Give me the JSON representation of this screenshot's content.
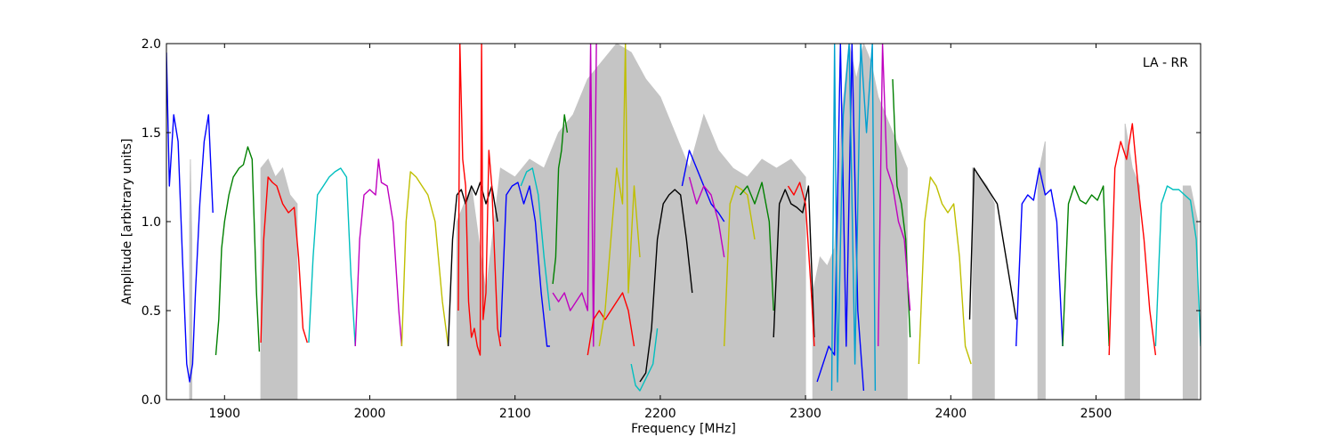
{
  "chart_data": {
    "type": "line",
    "title": "",
    "annotation": "LA - RR",
    "xlabel": "Frequency [MHz]",
    "ylabel": "Amplitude [arbitrary units]",
    "xlim": [
      1860,
      2572
    ],
    "ylim": [
      0.0,
      2.0
    ],
    "xticks": [
      1900,
      2000,
      2100,
      2200,
      2300,
      2400,
      2500
    ],
    "yticks": [
      0.0,
      0.5,
      1.0,
      1.5,
      2.0
    ],
    "xtick_labels": [
      "1900",
      "2000",
      "2100",
      "2200",
      "2300",
      "2400",
      "2500"
    ],
    "ytick_labels": [
      "0.0",
      "0.5",
      "1.0",
      "1.5",
      "2.0"
    ],
    "grid": false,
    "background_series": {
      "color": "#bfbfbf",
      "bands": [
        {
          "x": [
            1876,
            1876.5,
            1877,
            1877.5
          ],
          "y": [
            1.0,
            1.35,
            1.1,
            0.9
          ]
        },
        {
          "x": [
            1925,
            1930,
            1935,
            1940,
            1945,
            1950
          ],
          "y": [
            1.3,
            1.35,
            1.25,
            1.3,
            1.15,
            1.1
          ]
        },
        {
          "x": [
            2060,
            2070,
            2080,
            2090,
            2100,
            2110,
            2120,
            2130,
            2140,
            2150,
            2160,
            2170,
            2180,
            2190,
            2200,
            2210,
            2220,
            2230,
            2240,
            2250,
            2260,
            2270,
            2280,
            2290,
            2300
          ],
          "y": [
            1.0,
            1.2,
            0.6,
            1.3,
            1.25,
            1.35,
            1.3,
            1.5,
            1.6,
            1.8,
            1.9,
            2.0,
            1.95,
            1.8,
            1.7,
            1.5,
            1.3,
            1.6,
            1.4,
            1.3,
            1.25,
            1.35,
            1.3,
            1.35,
            1.25
          ]
        },
        {
          "x": [
            2305,
            2310,
            2315,
            2320,
            2325,
            2330,
            2335,
            2340,
            2345,
            2350,
            2355,
            2360,
            2365,
            2370
          ],
          "y": [
            0.6,
            0.8,
            0.75,
            0.85,
            1.6,
            2.0,
            1.8,
            2.0,
            1.9,
            1.7,
            1.6,
            1.5,
            1.4,
            1.3
          ]
        },
        {
          "x": [
            2415,
            2420,
            2425,
            2430
          ],
          "y": [
            1.3,
            1.25,
            1.2,
            1.1
          ]
        },
        {
          "x": [
            2460,
            2465
          ],
          "y": [
            1.25,
            1.45
          ]
        },
        {
          "x": [
            2520,
            2525,
            2530
          ],
          "y": [
            1.55,
            1.3,
            1.2
          ]
        },
        {
          "x": [
            2560,
            2565,
            2570
          ],
          "y": [
            1.2,
            1.2,
            1.0
          ]
        }
      ]
    },
    "series": [
      {
        "color": "#0000ff",
        "x": [
          1860,
          1862,
          1865,
          1868,
          1871,
          1874,
          1876,
          1878,
          1880,
          1883,
          1886,
          1889,
          1892
        ],
        "y": [
          1.95,
          1.2,
          1.6,
          1.45,
          0.8,
          0.2,
          0.1,
          0.2,
          0.6,
          1.1,
          1.45,
          1.6,
          1.05
        ]
      },
      {
        "color": "#008000",
        "x": [
          1894,
          1896,
          1898,
          1900,
          1903,
          1906,
          1910,
          1913,
          1916,
          1919,
          1922,
          1924
        ],
        "y": [
          0.25,
          0.45,
          0.85,
          1.0,
          1.15,
          1.25,
          1.3,
          1.32,
          1.42,
          1.35,
          0.6,
          0.27
        ]
      },
      {
        "color": "#ff0000",
        "x": [
          1925,
          1927,
          1930,
          1933,
          1936,
          1940,
          1944,
          1948,
          1951,
          1954,
          1957
        ],
        "y": [
          0.32,
          0.9,
          1.25,
          1.22,
          1.2,
          1.1,
          1.05,
          1.08,
          0.8,
          0.4,
          0.32
        ]
      },
      {
        "color": "#00bfbf",
        "x": [
          1958,
          1961,
          1964,
          1968,
          1972,
          1976,
          1980,
          1984,
          1987,
          1990
        ],
        "y": [
          0.32,
          0.8,
          1.15,
          1.2,
          1.25,
          1.28,
          1.3,
          1.25,
          0.7,
          0.3
        ]
      },
      {
        "color": "#bf00bf",
        "x": [
          1990,
          1993,
          1996,
          2000,
          2004,
          2006,
          2008,
          2012,
          2016,
          2020,
          2022
        ],
        "y": [
          0.3,
          0.9,
          1.15,
          1.18,
          1.15,
          1.35,
          1.22,
          1.2,
          1.0,
          0.5,
          0.3
        ]
      },
      {
        "color": "#bfbf00",
        "x": [
          2022,
          2025,
          2028,
          2032,
          2036,
          2040,
          2045,
          2050,
          2054
        ],
        "y": [
          0.3,
          1.0,
          1.28,
          1.25,
          1.2,
          1.15,
          1.0,
          0.55,
          0.3
        ]
      },
      {
        "color": "#000000",
        "x": [
          2054,
          2057,
          2060,
          2063,
          2066,
          2070,
          2073,
          2076,
          2080,
          2084,
          2088
        ],
        "y": [
          0.3,
          0.9,
          1.15,
          1.18,
          1.1,
          1.2,
          1.15,
          1.22,
          1.1,
          1.2,
          1.0
        ]
      },
      {
        "color": "#ff0000",
        "x": [
          2061,
          2062,
          2064,
          2066,
          2068,
          2070,
          2072,
          2074,
          2076,
          2077,
          2078,
          2080,
          2082,
          2084,
          2086,
          2088,
          2090
        ],
        "y": [
          0.5,
          2.0,
          1.35,
          1.2,
          0.55,
          0.35,
          0.4,
          0.3,
          0.25,
          2.0,
          0.45,
          0.6,
          1.4,
          1.2,
          0.8,
          0.4,
          0.3
        ]
      },
      {
        "color": "#0000ff",
        "x": [
          2090,
          2094,
          2098,
          2102,
          2106,
          2110,
          2114,
          2118,
          2122,
          2124
        ],
        "y": [
          0.35,
          1.15,
          1.2,
          1.22,
          1.1,
          1.2,
          1.0,
          0.6,
          0.3,
          0.3
        ]
      },
      {
        "color": "#00bfbf",
        "x": [
          2104,
          2108,
          2112,
          2116,
          2120,
          2124
        ],
        "y": [
          1.2,
          1.28,
          1.3,
          1.15,
          0.8,
          0.5
        ]
      },
      {
        "color": "#008000",
        "x": [
          2126,
          2128,
          2130,
          2132,
          2134,
          2136
        ],
        "y": [
          0.65,
          0.8,
          1.3,
          1.4,
          1.6,
          1.5
        ]
      },
      {
        "color": "#bf00bf",
        "x": [
          2126,
          2130,
          2134,
          2138,
          2142,
          2146,
          2150,
          2152,
          2154,
          2156
        ],
        "y": [
          0.6,
          0.55,
          0.6,
          0.5,
          0.55,
          0.6,
          0.5,
          2.0,
          0.3,
          2.0
        ]
      },
      {
        "color": "#ff0000",
        "x": [
          2150,
          2154,
          2158,
          2162,
          2166,
          2170,
          2174,
          2178,
          2182
        ],
        "y": [
          0.25,
          0.45,
          0.5,
          0.45,
          0.5,
          0.55,
          0.6,
          0.5,
          0.3
        ]
      },
      {
        "color": "#bfbf00",
        "x": [
          2158,
          2162,
          2166,
          2170,
          2174,
          2176,
          2178,
          2182,
          2186
        ],
        "y": [
          0.3,
          0.5,
          0.9,
          1.3,
          1.1,
          2.0,
          0.6,
          1.2,
          0.8
        ]
      },
      {
        "color": "#00bfbf",
        "x": [
          2180,
          2183,
          2186,
          2189,
          2192,
          2195,
          2198
        ],
        "y": [
          0.2,
          0.08,
          0.05,
          0.1,
          0.15,
          0.2,
          0.4
        ]
      },
      {
        "color": "#000000",
        "x": [
          2186,
          2190,
          2194,
          2198,
          2202,
          2206,
          2210,
          2214,
          2218,
          2222
        ],
        "y": [
          0.1,
          0.15,
          0.4,
          0.9,
          1.1,
          1.15,
          1.18,
          1.15,
          0.9,
          0.6
        ]
      },
      {
        "color": "#0000ff",
        "x": [
          2215,
          2220,
          2225,
          2230,
          2235,
          2240,
          2244
        ],
        "y": [
          1.2,
          1.4,
          1.3,
          1.2,
          1.1,
          1.05,
          1.0
        ]
      },
      {
        "color": "#bf00bf",
        "x": [
          2220,
          2225,
          2230,
          2235,
          2240,
          2244
        ],
        "y": [
          1.25,
          1.1,
          1.2,
          1.15,
          1.0,
          0.8
        ]
      },
      {
        "color": "#bfbf00",
        "x": [
          2244,
          2248,
          2252,
          2256,
          2260,
          2265
        ],
        "y": [
          0.3,
          1.1,
          1.2,
          1.18,
          1.15,
          0.9
        ]
      },
      {
        "color": "#008000",
        "x": [
          2255,
          2260,
          2265,
          2270,
          2275,
          2278
        ],
        "y": [
          1.15,
          1.2,
          1.1,
          1.22,
          1.0,
          0.5
        ]
      },
      {
        "color": "#000000",
        "x": [
          2278,
          2282,
          2286,
          2290,
          2294,
          2298,
          2302,
          2306
        ],
        "y": [
          0.35,
          1.1,
          1.18,
          1.1,
          1.08,
          1.05,
          1.2,
          0.35
        ]
      },
      {
        "color": "#ff0000",
        "x": [
          2288,
          2292,
          2296,
          2300,
          2304,
          2306
        ],
        "y": [
          1.2,
          1.15,
          1.22,
          1.1,
          0.6,
          0.3
        ]
      },
      {
        "color": "#0000ff",
        "x": [
          2308,
          2312,
          2316,
          2320,
          2324,
          2328,
          2332,
          2336,
          2340
        ],
        "y": [
          0.1,
          0.2,
          0.3,
          0.25,
          2.0,
          0.3,
          2.0,
          0.5,
          0.05
        ]
      },
      {
        "color": "#00a0d0",
        "x": [
          2318,
          2320,
          2322,
          2326,
          2330,
          2334,
          2338,
          2342,
          2346,
          2348
        ],
        "y": [
          0.05,
          2.0,
          0.1,
          1.6,
          2.0,
          0.2,
          2.0,
          1.5,
          2.0,
          0.05
        ]
      },
      {
        "color": "#008000",
        "x": [
          2360,
          2363,
          2366,
          2369,
          2372
        ],
        "y": [
          1.8,
          1.2,
          1.1,
          0.9,
          0.35
        ]
      },
      {
        "color": "#bf00bf",
        "x": [
          2350,
          2353,
          2356,
          2360,
          2364,
          2368,
          2372
        ],
        "y": [
          0.3,
          2.0,
          1.3,
          1.2,
          1.0,
          0.9,
          0.5
        ]
      },
      {
        "color": "#bfbf00",
        "x": [
          2378,
          2382,
          2386,
          2390,
          2394,
          2398,
          2402,
          2406,
          2410,
          2414
        ],
        "y": [
          0.2,
          1.0,
          1.25,
          1.2,
          1.1,
          1.05,
          1.1,
          0.8,
          0.3,
          0.2
        ]
      },
      {
        "color": "#000000",
        "x": [
          2413,
          2416,
          2420,
          2424,
          2428,
          2432,
          2436,
          2440,
          2445
        ],
        "y": [
          0.45,
          1.3,
          1.25,
          1.2,
          1.15,
          1.1,
          0.9,
          0.7,
          0.45
        ]
      },
      {
        "color": "#0000ff",
        "x": [
          2445,
          2449,
          2453,
          2457,
          2461,
          2465,
          2469,
          2473,
          2477
        ],
        "y": [
          0.3,
          1.1,
          1.15,
          1.12,
          1.3,
          1.15,
          1.18,
          1.0,
          0.3
        ]
      },
      {
        "color": "#008000",
        "x": [
          2477,
          2481,
          2485,
          2489,
          2493,
          2497,
          2501,
          2505,
          2509
        ],
        "y": [
          0.3,
          1.1,
          1.2,
          1.12,
          1.1,
          1.15,
          1.12,
          1.2,
          0.3
        ]
      },
      {
        "color": "#ff0000",
        "x": [
          2509,
          2513,
          2517,
          2521,
          2525,
          2529,
          2533,
          2537,
          2541
        ],
        "y": [
          0.25,
          1.3,
          1.45,
          1.35,
          1.55,
          1.2,
          0.9,
          0.5,
          0.25
        ]
      },
      {
        "color": "#00bfbf",
        "x": [
          2541,
          2545,
          2549,
          2553,
          2557,
          2561,
          2565,
          2569,
          2572
        ],
        "y": [
          0.3,
          1.1,
          1.2,
          1.18,
          1.18,
          1.15,
          1.12,
          0.9,
          0.3
        ]
      }
    ]
  }
}
